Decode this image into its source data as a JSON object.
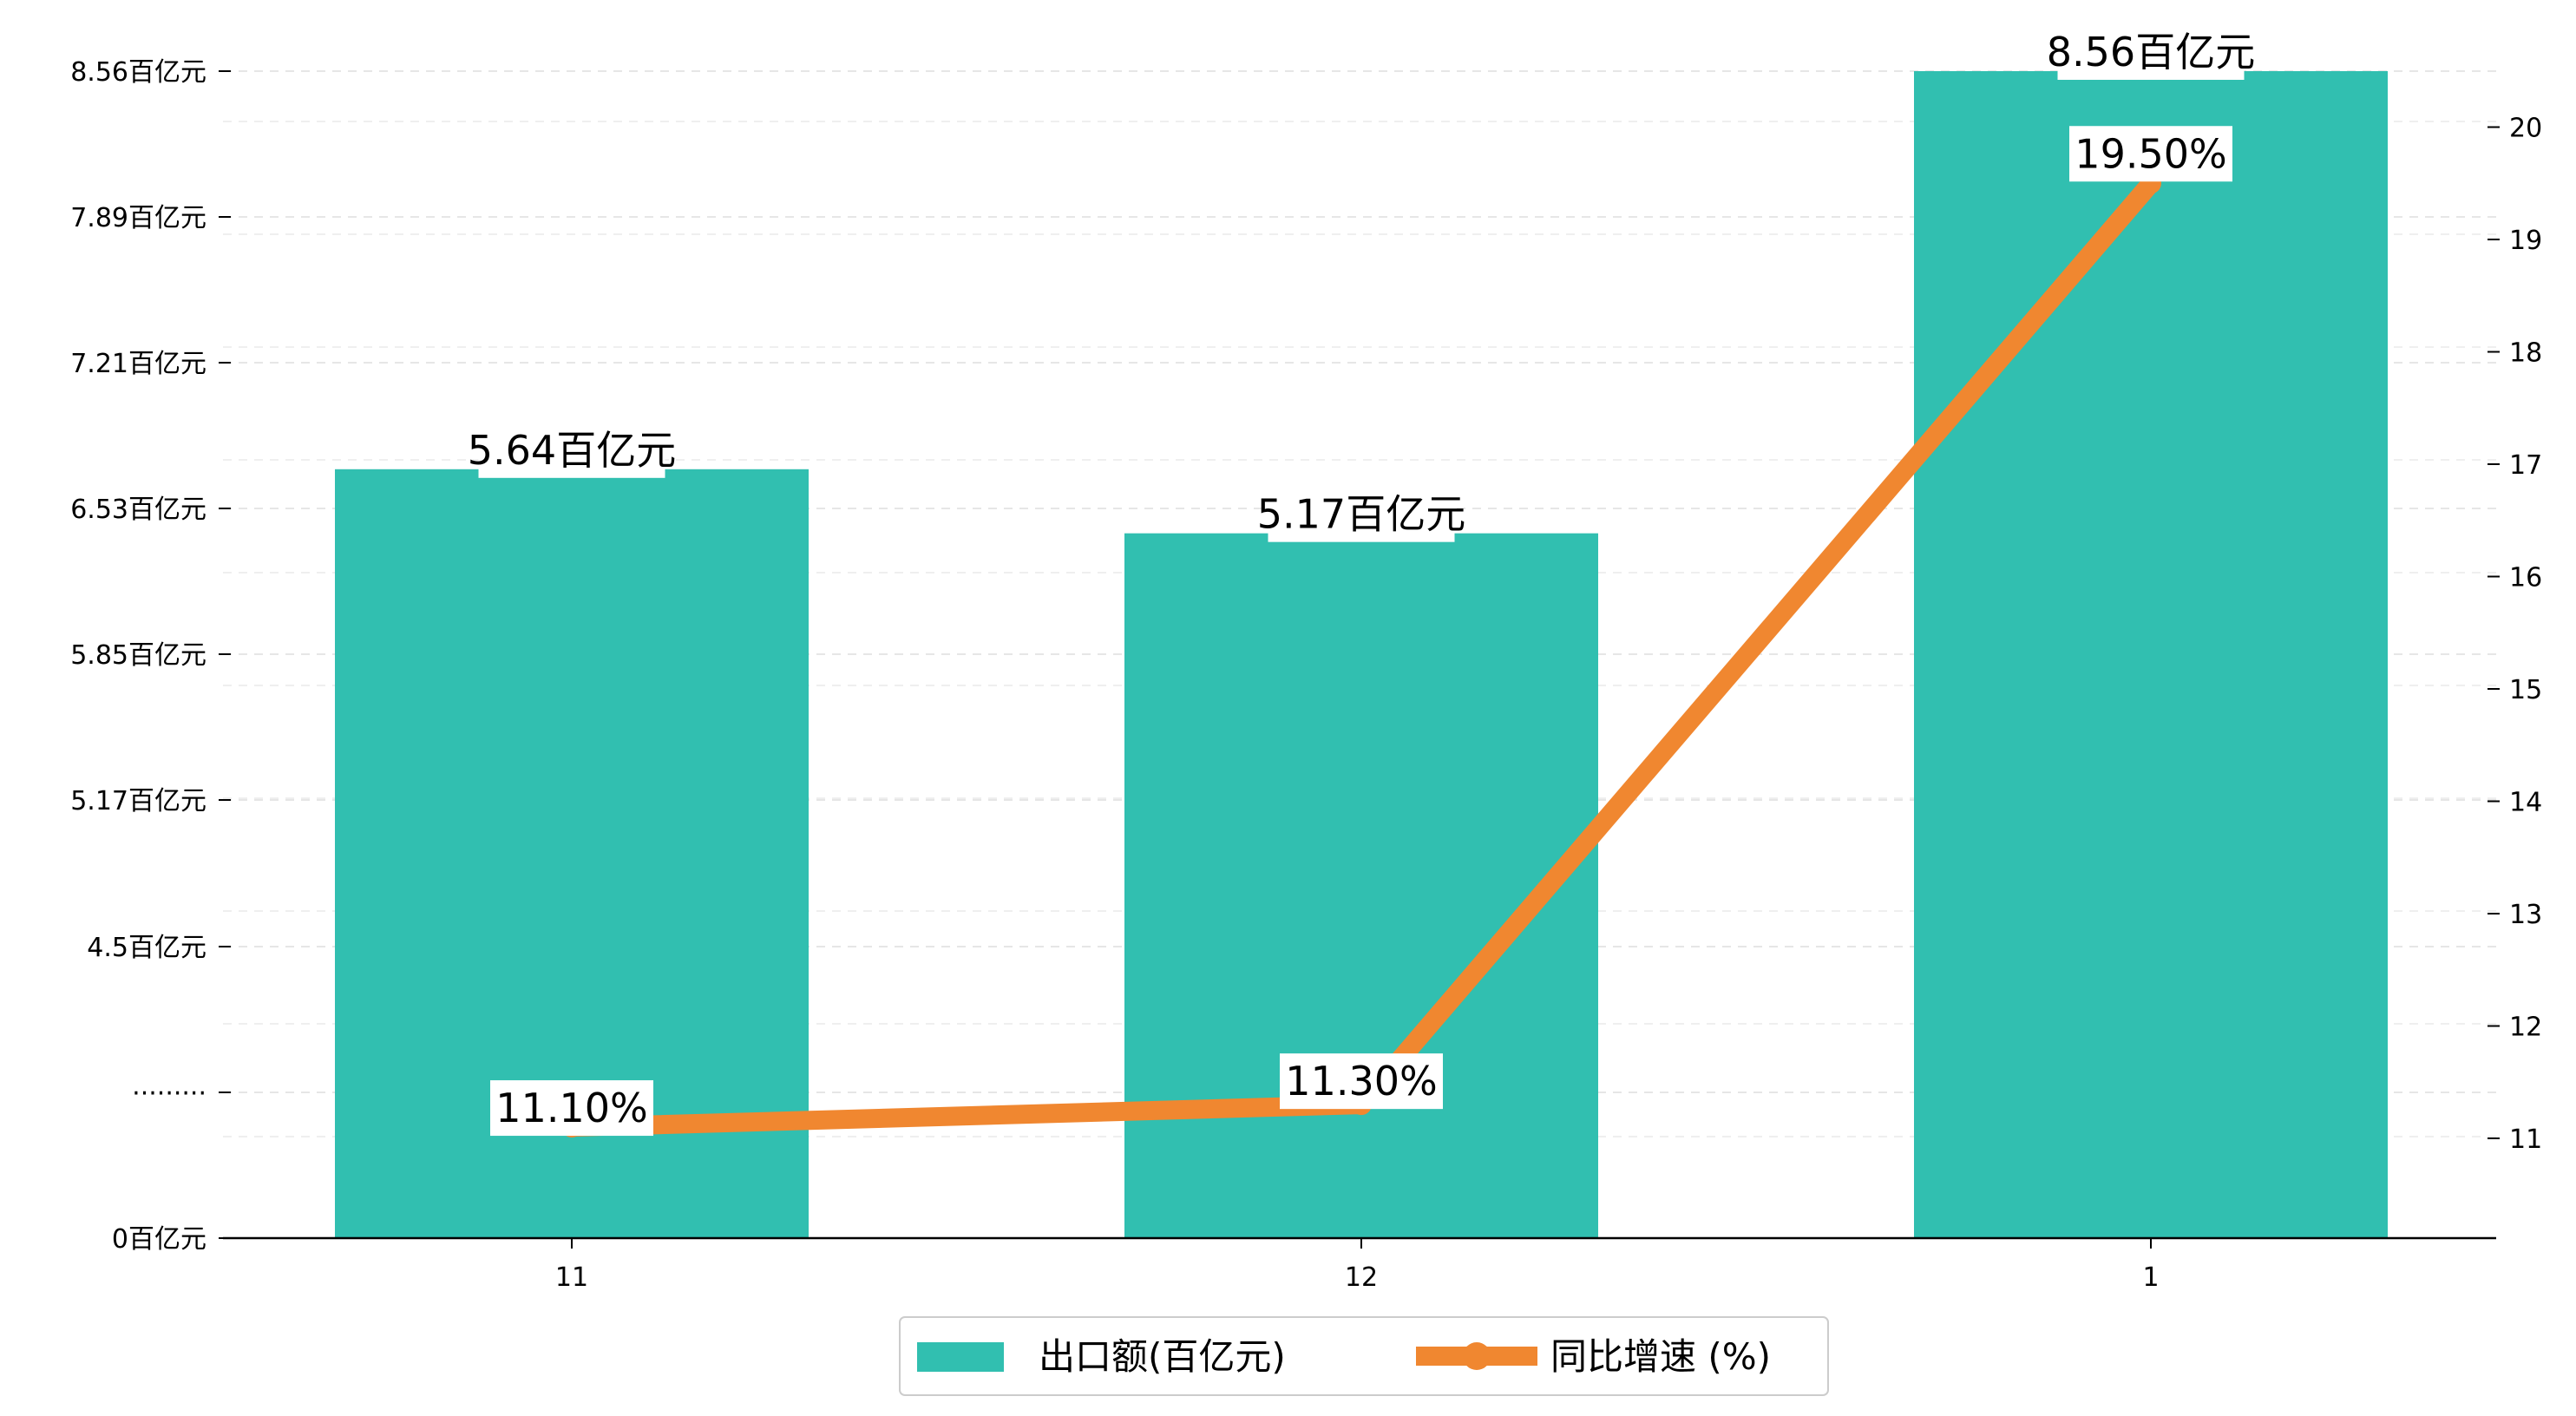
{
  "chart_data": {
    "type": "bar",
    "categories": [
      "11",
      "12",
      "1"
    ],
    "series": [
      {
        "name": "出口额(百亿元)",
        "kind": "bar",
        "axis": "left",
        "values": [
          5.64,
          5.17,
          8.56
        ],
        "labels": [
          "5.64百亿元",
          "5.17百亿元",
          "8.56百亿元"
        ],
        "color": "#31bfb0"
      },
      {
        "name": "同比增速 (%)",
        "kind": "line",
        "axis": "right",
        "values": [
          11.1,
          11.3,
          19.5
        ],
        "labels": [
          "11.10%",
          "11.30%",
          "19.50%"
        ],
        "color": "#f08730"
      }
    ],
    "left_axis": {
      "tick_labels": [
        "0百亿元",
        "·········",
        "4.5百亿元",
        "5.17百亿元",
        "5.85百亿元",
        "6.53百亿元",
        "7.21百亿元",
        "7.89百亿元",
        "8.56百亿元"
      ],
      "range": [
        0,
        8.56
      ],
      "broken": true
    },
    "right_axis": {
      "ticks": [
        11,
        12,
        13,
        14,
        15,
        16,
        17,
        18,
        19,
        20
      ],
      "range": [
        10.1,
        20.5
      ]
    },
    "grid": "horizontal dashed",
    "legend_position": "bottom-center"
  }
}
